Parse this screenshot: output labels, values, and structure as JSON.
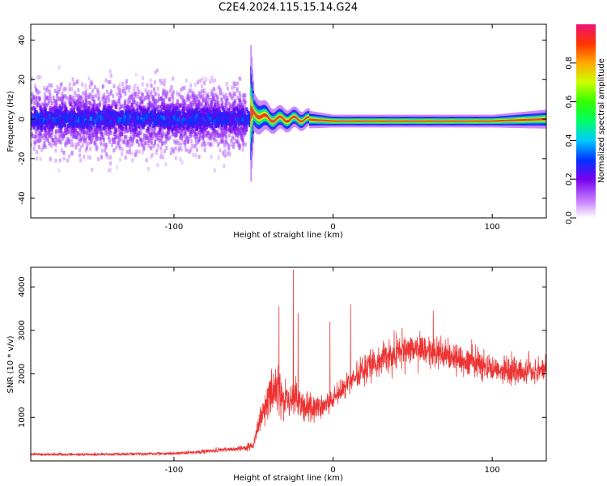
{
  "figure_title": "C2E4.2024.115.15.14.G24",
  "chart_data": [
    {
      "type": "heatmap",
      "xlabel": "Height of straight line (km)",
      "ylabel": "Frequency (Hz)",
      "xlim": [
        -190,
        134
      ],
      "ylim": [
        -50,
        48
      ],
      "xticks": [
        -100,
        0,
        100
      ],
      "yticks": [
        -40,
        -20,
        0,
        20,
        40
      ],
      "colorbar": {
        "label": "Normalized spectral amplitude",
        "range": [
          0.0,
          1.0
        ],
        "ticks": [
          0.0,
          0.2,
          0.4,
          0.6,
          0.8
        ]
      },
      "description_points": [
        {
          "x": -190,
          "center_hz": 0,
          "spread_hz": 45
        },
        {
          "x": -55,
          "center_hz": 0,
          "spread_hz": 45
        },
        {
          "x": -50,
          "center_hz": 3,
          "spread_hz": 6
        },
        {
          "x": -40,
          "center_hz": 0,
          "spread_hz": 4
        },
        {
          "x": -20,
          "center_hz": 0,
          "spread_hz": 3
        },
        {
          "x": 0,
          "center_hz": -1,
          "spread_hz": 2
        },
        {
          "x": 100,
          "center_hz": -1,
          "spread_hz": 2
        },
        {
          "x": 134,
          "center_hz": 0,
          "spread_hz": 3
        }
      ]
    },
    {
      "type": "line",
      "xlabel": "Height of straight line (km)",
      "ylabel": "SNR (10 * v/v)",
      "xlim": [
        -190,
        134
      ],
      "ylim": [
        0,
        4450
      ],
      "xticks": [
        -100,
        0,
        100
      ],
      "yticks": [
        1000,
        2000,
        3000,
        4000
      ],
      "color": "#ee3333",
      "series": [
        {
          "x": [
            -190,
            -150,
            -100,
            -80,
            -60,
            -50,
            -45,
            -40,
            -35,
            -30,
            -25,
            -20,
            -10,
            0,
            10,
            20,
            30,
            40,
            50,
            60,
            70,
            80,
            90,
            100,
            110,
            120,
            134
          ],
          "y": [
            150,
            150,
            170,
            220,
            280,
            350,
            1000,
            1500,
            1700,
            1350,
            1450,
            1250,
            1200,
            1400,
            1800,
            2100,
            2350,
            2500,
            2550,
            2500,
            2450,
            2350,
            2250,
            2150,
            2050,
            2050,
            2100
          ]
        }
      ],
      "peaks": [
        {
          "x": -34,
          "y": 3550
        },
        {
          "x": -25,
          "y": 4400
        },
        {
          "x": -22,
          "y": 3400
        },
        {
          "x": -2,
          "y": 3200
        },
        {
          "x": 11,
          "y": 3600
        },
        {
          "x": 63,
          "y": 3450
        }
      ]
    }
  ]
}
